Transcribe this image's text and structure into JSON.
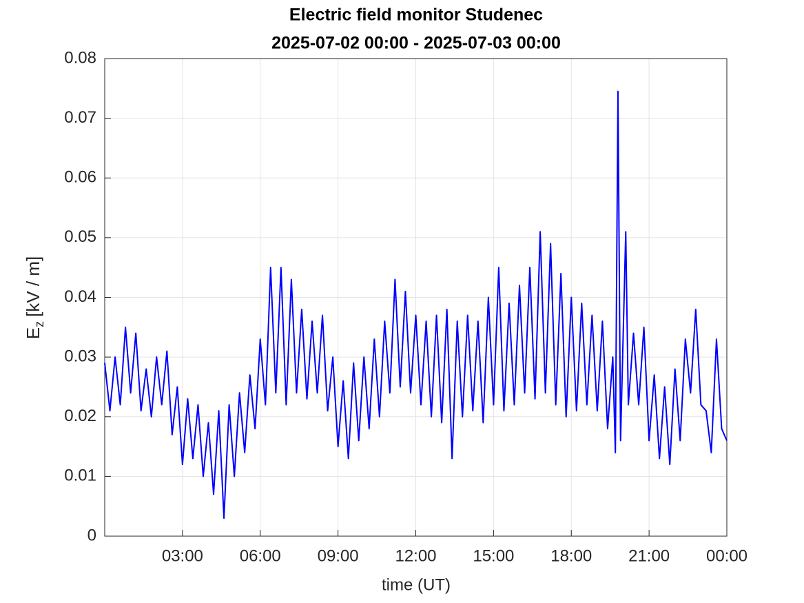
{
  "chart_data": {
    "type": "line",
    "title": "Electric field monitor Studenec",
    "subtitle": "2025-07-02 00:00 - 2025-07-03 00:00",
    "xlabel": "time (UT)",
    "ylabel": {
      "symbol": "E",
      "subscript": "z",
      "unit": "[kV / m]"
    },
    "x": [
      0,
      0.2,
      0.4,
      0.6,
      0.8,
      1,
      1.2,
      1.4,
      1.6,
      1.8,
      2,
      2.2,
      2.4,
      2.6,
      2.8,
      3,
      3.2,
      3.4,
      3.6,
      3.8,
      4,
      4.2,
      4.4,
      4.6,
      4.8,
      5,
      5.2,
      5.4,
      5.6,
      5.8,
      6,
      6.2,
      6.4,
      6.6,
      6.8,
      7,
      7.2,
      7.4,
      7.6,
      7.8,
      8,
      8.2,
      8.4,
      8.6,
      8.8,
      9,
      9.2,
      9.4,
      9.6,
      9.8,
      10,
      10.2,
      10.4,
      10.6,
      10.8,
      11,
      11.2,
      11.4,
      11.6,
      11.8,
      12,
      12.2,
      12.4,
      12.6,
      12.8,
      13,
      13.2,
      13.4,
      13.6,
      13.8,
      14,
      14.2,
      14.4,
      14.6,
      14.8,
      15,
      15.2,
      15.4,
      15.6,
      15.8,
      16,
      16.2,
      16.4,
      16.6,
      16.8,
      17,
      17.2,
      17.4,
      17.6,
      17.8,
      18,
      18.2,
      18.4,
      18.6,
      18.8,
      19,
      19.2,
      19.4,
      19.6,
      19.7,
      19.8,
      19.9,
      20.1,
      20.2,
      20.4,
      20.6,
      20.8,
      21,
      21.2,
      21.4,
      21.6,
      21.8,
      22,
      22.2,
      22.4,
      22.6,
      22.8,
      23,
      23.2,
      23.4,
      23.6,
      23.8,
      24
    ],
    "series": [
      {
        "color": "#0000ff",
        "values": [
          0.029,
          0.021,
          0.03,
          0.022,
          0.035,
          0.024,
          0.034,
          0.021,
          0.028,
          0.02,
          0.03,
          0.022,
          0.031,
          0.017,
          0.025,
          0.012,
          0.023,
          0.013,
          0.022,
          0.01,
          0.019,
          0.007,
          0.021,
          0.003,
          0.022,
          0.01,
          0.024,
          0.014,
          0.027,
          0.018,
          0.033,
          0.022,
          0.045,
          0.024,
          0.045,
          0.022,
          0.043,
          0.024,
          0.038,
          0.023,
          0.036,
          0.024,
          0.037,
          0.021,
          0.03,
          0.015,
          0.026,
          0.013,
          0.029,
          0.016,
          0.03,
          0.018,
          0.033,
          0.02,
          0.036,
          0.024,
          0.043,
          0.025,
          0.041,
          0.024,
          0.037,
          0.022,
          0.036,
          0.02,
          0.037,
          0.019,
          0.038,
          0.013,
          0.036,
          0.02,
          0.037,
          0.021,
          0.036,
          0.019,
          0.04,
          0.022,
          0.045,
          0.021,
          0.039,
          0.022,
          0.042,
          0.024,
          0.045,
          0.023,
          0.051,
          0.024,
          0.049,
          0.022,
          0.044,
          0.02,
          0.04,
          0.021,
          0.039,
          0.022,
          0.037,
          0.021,
          0.036,
          0.018,
          0.03,
          0.014,
          0.0745,
          0.016,
          0.051,
          0.022,
          0.034,
          0.022,
          0.035,
          0.016,
          0.027,
          0.013,
          0.025,
          0.012,
          0.028,
          0.016,
          0.033,
          0.024,
          0.038,
          0.022,
          0.021,
          0.014,
          0.033,
          0.018,
          0.016
        ]
      }
    ],
    "xlim": [
      0,
      24
    ],
    "xticks": [
      {
        "value": 3,
        "label": "03:00"
      },
      {
        "value": 6,
        "label": "06:00"
      },
      {
        "value": 9,
        "label": "09:00"
      },
      {
        "value": 12,
        "label": "12:00"
      },
      {
        "value": 15,
        "label": "15:00"
      },
      {
        "value": 18,
        "label": "18:00"
      },
      {
        "value": 21,
        "label": "21:00"
      },
      {
        "value": 24,
        "label": "00:00"
      }
    ],
    "ylim": [
      0,
      0.08
    ],
    "yticks": [
      0,
      0.01,
      0.02,
      0.03,
      0.04,
      0.05,
      0.06,
      0.07,
      0.08
    ],
    "grid": true
  }
}
